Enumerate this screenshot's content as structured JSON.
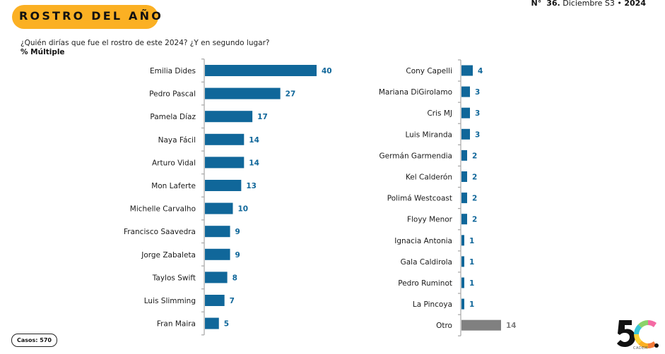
{
  "header": {
    "title": "ROSTRO DEL AÑO",
    "issue_prefix": "N°",
    "issue_number": "36.",
    "issue_period": "Diciembre S3",
    "issue_sep": "•",
    "issue_year": "2024"
  },
  "question": "¿Quién dirías que fue el rostro de este 2024? ¿Y en segundo lugar?",
  "measure_label": "% Múltiple",
  "footer": {
    "casos": "Casos: 570",
    "logo_caption": "CADEM"
  },
  "colors": {
    "title_pill": "#fbb023",
    "bar": "#10679a",
    "bar_other": "#808080",
    "value_text": "#10679a",
    "value_other": "#808080",
    "axis": "#a6a6a6"
  },
  "chart_data": [
    {
      "type": "bar",
      "orientation": "horizontal",
      "title": "",
      "xlabel": "",
      "ylabel": "",
      "unit": "%",
      "grid": false,
      "xlim": [
        0,
        40
      ],
      "categories": [
        "Emilia Dides",
        "Pedro Pascal",
        "Pamela Díaz",
        "Naya Fácil",
        "Arturo Vidal",
        "Mon Laferte",
        "Michelle Carvalho",
        "Francisco Saavedra",
        "Jorge Zabaleta",
        "Taylos Swift",
        "Luis Slimming",
        "Fran Maira"
      ],
      "values": [
        40,
        27,
        17,
        14,
        14,
        13,
        10,
        9,
        9,
        8,
        7,
        5
      ]
    },
    {
      "type": "bar",
      "orientation": "horizontal",
      "title": "",
      "xlabel": "",
      "ylabel": "",
      "unit": "%",
      "grid": false,
      "xlim": [
        0,
        14
      ],
      "categories": [
        "Cony Capelli",
        "Mariana DiGirolamo",
        "Cris MJ",
        "Luis Miranda",
        "Germán Garmendia",
        "Kel Calderón",
        "Polimá Westcoast",
        "Floyy Menor",
        "Ignacia Antonia",
        "Gala Caldirola",
        "Pedro Ruminot",
        "La Pincoya",
        "Otro"
      ],
      "values": [
        4,
        3,
        3,
        3,
        2,
        2,
        2,
        2,
        1,
        1,
        1,
        1,
        14
      ],
      "highlight_other": "Otro"
    }
  ]
}
